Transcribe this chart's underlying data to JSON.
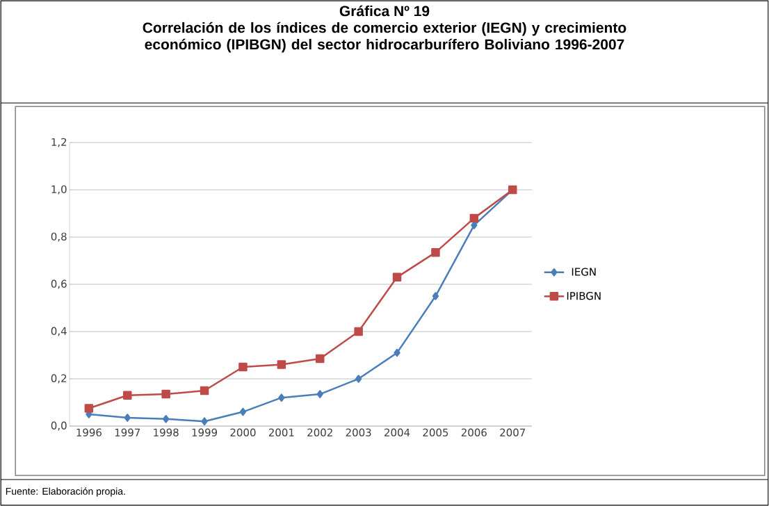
{
  "chart_data": {
    "type": "line",
    "title": "Gráfica Nº 19",
    "subtitle": "Correlación de los índices de comercio exterior (IEGN) y crecimiento económico (IPIBGN) del sector hidrocarburífero Boliviano 1996-2007",
    "categories": [
      "1996",
      "1997",
      "1998",
      "1999",
      "2000",
      "2001",
      "2002",
      "2003",
      "2004",
      "2005",
      "2006",
      "2007"
    ],
    "series": [
      {
        "name": "IEGN",
        "color": "#4a7ebb",
        "marker": "diamond",
        "values": [
          0.05,
          0.035,
          0.03,
          0.02,
          0.06,
          0.12,
          0.135,
          0.2,
          0.31,
          0.55,
          0.85,
          1.0
        ]
      },
      {
        "name": "IPIBGN",
        "color": "#be4b48",
        "marker": "square",
        "values": [
          0.075,
          0.13,
          0.135,
          0.15,
          0.25,
          0.26,
          0.285,
          0.4,
          0.63,
          0.735,
          0.88,
          1.0
        ]
      }
    ],
    "ylim": [
      0,
      1.2
    ],
    "yticks": [
      {
        "value": 0,
        "label": "0,0"
      },
      {
        "value": 0.2,
        "label": "0,2"
      },
      {
        "value": 0.4,
        "label": "0,4"
      },
      {
        "value": 0.6,
        "label": "0,6"
      },
      {
        "value": 0.8,
        "label": "0,8"
      },
      {
        "value": 1.0,
        "label": "1,0"
      },
      {
        "value": 1.2,
        "label": "1,2"
      }
    ],
    "grid": "y",
    "legend": "right",
    "line_style": "solid",
    "annotations": [
      "Fuente: Elaboración propia."
    ]
  }
}
